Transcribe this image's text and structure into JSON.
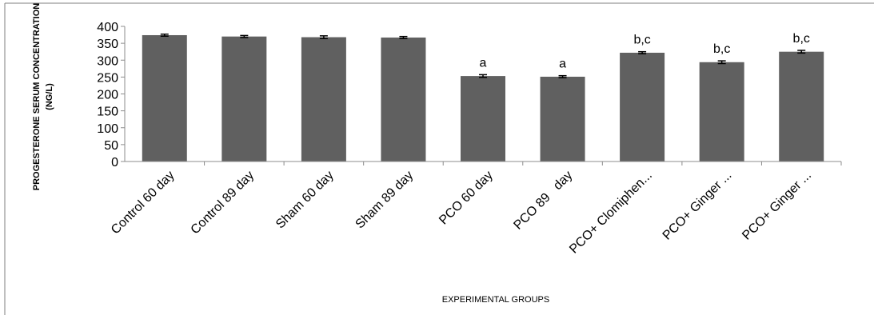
{
  "chart_data": {
    "type": "bar",
    "title": "",
    "xlabel": "EXPERIMENTAL GROUPS",
    "ylabel_lines": [
      "PROGESTERONE SERUM CONCENTRATION",
      "(NG/L)"
    ],
    "categories": [
      "Control 60 day",
      "Control 89 day",
      "Sham 60 day",
      "Sham 89 day",
      "PCO 60 day",
      "PCO 89   day",
      "PCO+ Clomiphen...",
      "PCO+ Ginger ...",
      "PCO+ Ginger ..."
    ],
    "values": [
      374,
      370,
      368,
      367,
      253,
      251,
      322,
      294,
      325
    ],
    "errors": [
      3,
      3,
      4,
      3,
      4,
      3,
      3,
      4,
      4
    ],
    "annotations": [
      "",
      "",
      "",
      "",
      "a",
      "a",
      "b,c",
      "b,c",
      "b,c"
    ],
    "ylim": [
      0,
      400
    ],
    "yticks": [
      0,
      50,
      100,
      150,
      200,
      250,
      300,
      350,
      400
    ],
    "grid": false,
    "legend": "none",
    "colors": {
      "bar": "#606060",
      "error_bar": "#000000",
      "axis": "#8c8c8c",
      "frame": "#7f7f7f"
    }
  }
}
